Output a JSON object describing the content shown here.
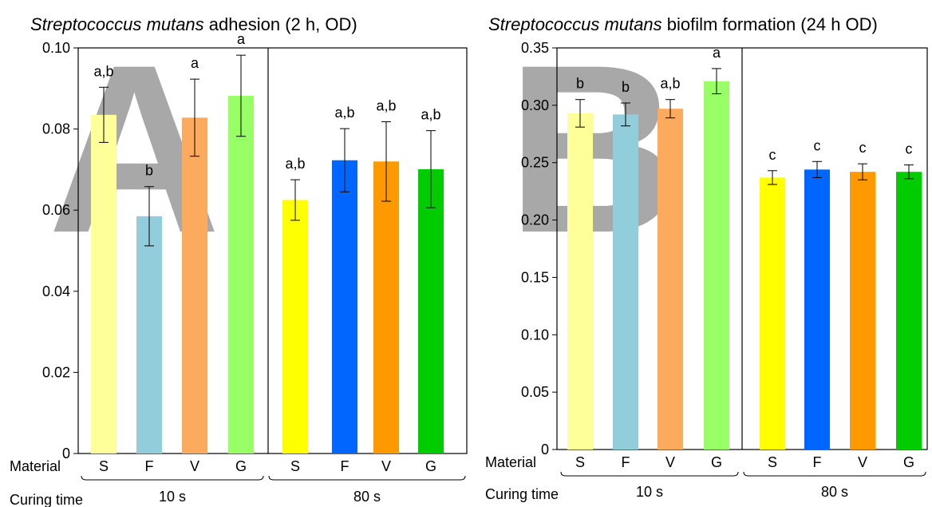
{
  "chart_data": [
    {
      "type": "bar",
      "panel_letter": "A",
      "title_italic": "Streptococcus mutans",
      "title_rest": " adhesion (2 h, OD)",
      "row_labels": {
        "material": "Material",
        "curing": "Curing time"
      },
      "groups": [
        {
          "label": "10 s",
          "categories": [
            "S",
            "F",
            "V",
            "G"
          ]
        },
        {
          "label": "80 s",
          "categories": [
            "S",
            "F",
            "V",
            "G"
          ]
        }
      ],
      "values": [
        0.0835,
        0.0585,
        0.0828,
        0.0882,
        0.0625,
        0.0723,
        0.072,
        0.0701
      ],
      "errors": [
        0.0068,
        0.0073,
        0.0095,
        0.01,
        0.005,
        0.0078,
        0.0098,
        0.0095
      ],
      "significance": [
        "a,b",
        "b",
        "a",
        "a",
        "a,b",
        "a,b",
        "a,b",
        "a,b"
      ],
      "colors": [
        "#ffff99",
        "#92cddc",
        "#fbaa5e",
        "#99ff66",
        "#ffff00",
        "#0066ff",
        "#ff9900",
        "#00cc00"
      ],
      "ylim": [
        0,
        0.1
      ],
      "yticks": [
        "0",
        "0.02",
        "0.04",
        "0.06",
        "0.08",
        "0.10"
      ],
      "ytick_values": [
        0,
        0.02,
        0.04,
        0.06,
        0.08,
        0.1
      ]
    },
    {
      "type": "bar",
      "panel_letter": "B",
      "title_italic": "Streptococcus mutans",
      "title_rest": " biofilm formation (24 h OD)",
      "row_labels": {
        "material": "Material",
        "curing": "Curing time"
      },
      "groups": [
        {
          "label": "10 s",
          "categories": [
            "S",
            "F",
            "V",
            "G"
          ]
        },
        {
          "label": "80 s",
          "categories": [
            "S",
            "F",
            "V",
            "G"
          ]
        }
      ],
      "values": [
        0.293,
        0.292,
        0.297,
        0.321,
        0.237,
        0.244,
        0.242,
        0.242
      ],
      "errors": [
        0.012,
        0.01,
        0.008,
        0.011,
        0.006,
        0.007,
        0.007,
        0.006
      ],
      "significance": [
        "b",
        "b",
        "a,b",
        "a",
        "c",
        "c",
        "c",
        "c"
      ],
      "colors": [
        "#ffff99",
        "#92cddc",
        "#fbaa5e",
        "#99ff66",
        "#ffff00",
        "#0066ff",
        "#ff9900",
        "#00cc00"
      ],
      "ylim": [
        0,
        0.35
      ],
      "yticks": [
        "0",
        "0.05",
        "0.10",
        "0.15",
        "0.20",
        "0.25",
        "0.30",
        "0.35"
      ],
      "ytick_values": [
        0,
        0.05,
        0.1,
        0.15,
        0.2,
        0.25,
        0.3,
        0.35
      ]
    }
  ]
}
